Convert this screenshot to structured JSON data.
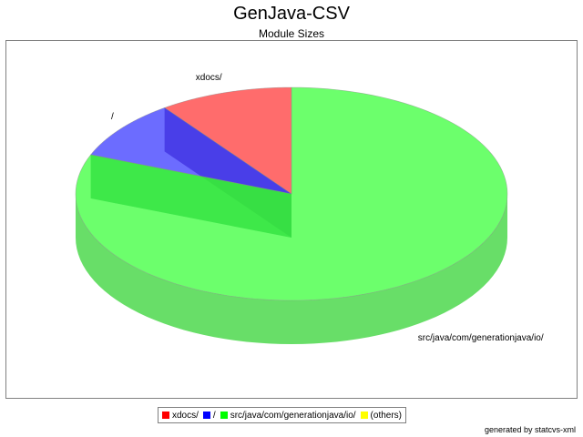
{
  "chart_data": {
    "type": "pie",
    "title": "GenJava-CSV",
    "subtitle": "Module Sizes",
    "slices": [
      {
        "label": "xdocs/",
        "value": 10,
        "color": "#ff0000"
      },
      {
        "label": "/",
        "value": 9,
        "color": "#0000ff"
      },
      {
        "label": "src/java/com/generationjava/io/",
        "value": 81,
        "color": "#00ff00"
      },
      {
        "label": "(others)",
        "value": 0,
        "color": "#ffff00"
      }
    ],
    "legend_position": "bottom"
  },
  "footer": "generated by statcvs-xml"
}
